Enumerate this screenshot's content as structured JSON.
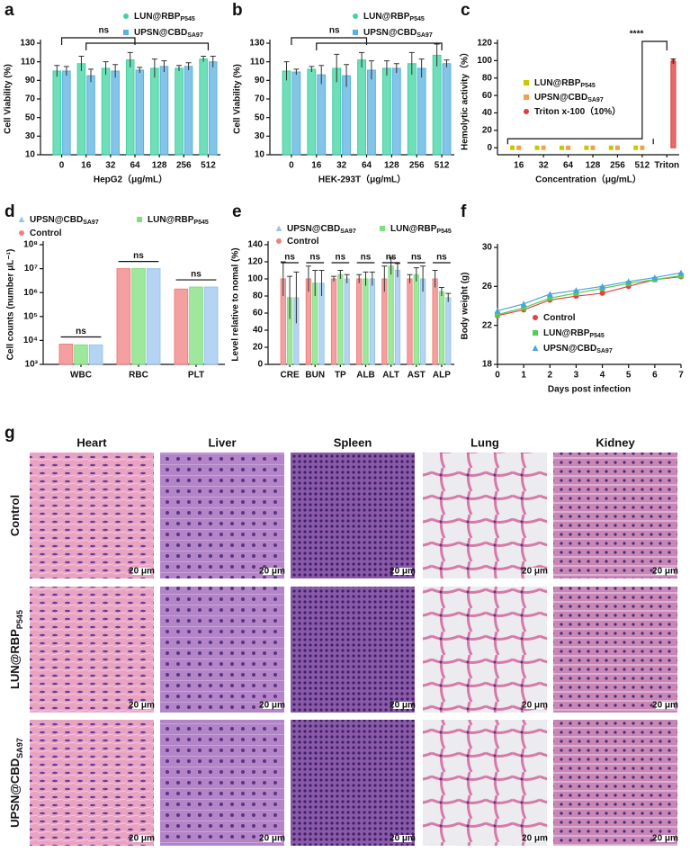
{
  "chart_data": [
    {
      "panel": "a",
      "type": "bar",
      "xlabel": "HepG2（μg/mL）",
      "ylabel": "Cell Viability (%)",
      "categories": [
        "0",
        "16",
        "32",
        "64",
        "128",
        "256",
        "512"
      ],
      "ylim": [
        10,
        130
      ],
      "yticks": [
        10,
        30,
        50,
        70,
        90,
        110,
        130
      ],
      "annotation": "ns",
      "series": [
        {
          "name": "LUN@RBP",
          "name_sub": "P545",
          "color": "#3fd3a1",
          "marker": "circle",
          "values": [
            100,
            108,
            103,
            112,
            103,
            103,
            113
          ],
          "errors": [
            6,
            8,
            7,
            8,
            10,
            3,
            3
          ]
        },
        {
          "name": "UPSN@CBD",
          "name_sub": "SA97",
          "color": "#5ab0e0",
          "marker": "square",
          "values": [
            100,
            95,
            100,
            101,
            105,
            105,
            110
          ],
          "errors": [
            5,
            7,
            7,
            3,
            6,
            4,
            6
          ]
        }
      ]
    },
    {
      "panel": "b",
      "type": "bar",
      "xlabel": "HEK-293T（μg/mL）",
      "ylabel": "Cell Viability (%)",
      "categories": [
        "0",
        "16",
        "32",
        "64",
        "128",
        "256",
        "512"
      ],
      "ylim": [
        10,
        130
      ],
      "yticks": [
        10,
        30,
        50,
        70,
        90,
        110,
        130
      ],
      "annotation": "ns",
      "series": [
        {
          "name": "LUN@RBP",
          "name_sub": "P545",
          "color": "#3fd3a1",
          "marker": "circle",
          "values": [
            100,
            102,
            103,
            112,
            103,
            108,
            117
          ],
          "errors": [
            10,
            3,
            15,
            8,
            8,
            12,
            12
          ]
        },
        {
          "name": "UPSN@CBD",
          "name_sub": "SA97",
          "color": "#5ab0e0",
          "marker": "square",
          "values": [
            99,
            96,
            95,
            101,
            103,
            103,
            108
          ],
          "errors": [
            3,
            10,
            12,
            10,
            5,
            10,
            4
          ]
        }
      ]
    },
    {
      "panel": "c",
      "type": "bar",
      "xlabel": "Concentration（μg/mL）",
      "ylabel": "Hemolytic activity（%）",
      "categories": [
        "16",
        "32",
        "64",
        "128",
        "256",
        "512",
        "Triton"
      ],
      "ylim": [
        -8,
        120
      ],
      "yticks": [
        0,
        20,
        40,
        60,
        80,
        100,
        120
      ],
      "annotation": "****",
      "markers": true,
      "series": [
        {
          "name": "LUN@RBP",
          "name_sub": "P545",
          "color": "#c9c800",
          "marker": "square",
          "values": [
            0,
            0,
            0,
            0,
            0,
            0,
            null
          ]
        },
        {
          "name": "UPSN@CBD",
          "name_sub": "SA97",
          "color": "#f0a050",
          "marker": "square",
          "values": [
            0,
            0,
            0,
            0,
            0,
            0,
            null
          ]
        },
        {
          "name": "Triton x-100（10%）",
          "color": "#e03a3a",
          "marker": "circle",
          "values": [
            null,
            null,
            null,
            null,
            null,
            null,
            99
          ],
          "errors": [
            null,
            null,
            null,
            null,
            null,
            null,
            3
          ]
        }
      ]
    },
    {
      "panel": "d",
      "type": "bar",
      "ylabel": "Cell counts (number μL⁻¹)",
      "log_y": true,
      "categories": [
        "WBC",
        "RBC",
        "PLT"
      ],
      "ylim": [
        1000,
        100000000
      ],
      "yticks": [
        {
          "value": 1000,
          "label": "10³"
        },
        {
          "value": 10000,
          "label": "10⁴"
        },
        {
          "value": 100000,
          "label": "10⁵"
        },
        {
          "value": 1000000,
          "label": "10⁶"
        },
        {
          "value": 10000000,
          "label": "10⁷"
        },
        {
          "value": 100000000,
          "label": "10⁸"
        }
      ],
      "annotations": [
        "ns",
        "ns",
        "ns"
      ],
      "series": [
        {
          "name": "Control",
          "color": "#f08080",
          "marker": "circle",
          "values": [
            7000,
            10000000,
            1400000
          ]
        },
        {
          "name": "LUN@RBP",
          "name_sub": "P545",
          "color": "#7ee07e",
          "marker": "square",
          "values": [
            6500,
            10000000,
            1700000
          ]
        },
        {
          "name": "UPSN@CBD",
          "name_sub": "SA97",
          "color": "#9cc4ee",
          "marker": "triangle",
          "values": [
            6500,
            10000000,
            1700000
          ]
        }
      ]
    },
    {
      "panel": "e",
      "type": "bar",
      "ylabel": "Level relative to nomal (%)",
      "categories": [
        "CRE",
        "BUN",
        "TP",
        "ALB",
        "ALT",
        "AST",
        "ALP"
      ],
      "ylim": [
        0,
        140
      ],
      "yticks": [
        0,
        20,
        40,
        60,
        80,
        100,
        120,
        140
      ],
      "annotations": [
        "ns",
        "ns",
        "ns",
        "ns",
        "ns",
        "ns",
        "ns"
      ],
      "series": [
        {
          "name": "Control",
          "color": "#f08080",
          "marker": "circle",
          "values": [
            100,
            100,
            100,
            100,
            100,
            100,
            100
          ],
          "errors": [
            20,
            15,
            3,
            5,
            15,
            5,
            10
          ]
        },
        {
          "name": "LUN@RBP",
          "name_sub": "P545",
          "color": "#7ee07e",
          "marker": "square",
          "values": [
            78,
            95,
            105,
            100,
            115,
            105,
            85
          ],
          "errors": [
            25,
            15,
            5,
            8,
            10,
            8,
            5
          ]
        },
        {
          "name": "UPSN@CBD",
          "name_sub": "SA97",
          "color": "#9cc4ee",
          "marker": "triangle",
          "values": [
            78,
            95,
            100,
            100,
            110,
            100,
            78
          ],
          "errors": [
            30,
            15,
            5,
            8,
            8,
            15,
            5
          ]
        }
      ]
    },
    {
      "panel": "f",
      "type": "line",
      "xlabel": "Days post infection",
      "ylabel": "Body weight (g)",
      "x": [
        0,
        1,
        2,
        3,
        4,
        5,
        6,
        7
      ],
      "xlim": [
        0,
        7
      ],
      "xticks": [
        0,
        1,
        2,
        3,
        4,
        5,
        6,
        7
      ],
      "ylim": [
        18,
        30
      ],
      "yticks": [
        18,
        22,
        26,
        30
      ],
      "series": [
        {
          "name": "Control",
          "color": "#e84040",
          "marker": "circle",
          "values": [
            23,
            23.6,
            24.6,
            25,
            25.3,
            26,
            26.7,
            27
          ]
        },
        {
          "name": "LUN@RBP",
          "name_sub": "P545",
          "color": "#50d050",
          "marker": "square",
          "values": [
            23.1,
            23.8,
            24.8,
            25.3,
            25.8,
            26.3,
            26.7,
            27.1
          ]
        },
        {
          "name": "UPSN@CBD",
          "name_sub": "SA97",
          "color": "#4aa3e0",
          "marker": "triangle",
          "values": [
            23.5,
            24.2,
            25.2,
            25.6,
            26,
            26.5,
            26.9,
            27.4
          ]
        }
      ]
    }
  ],
  "histology": {
    "panel": "g",
    "columns": [
      "Heart",
      "Liver",
      "Spleen",
      "Lung",
      "Kidney"
    ],
    "rows": [
      {
        "label": "Control"
      },
      {
        "label": "LUN@RBP",
        "sub": "P545"
      },
      {
        "label": "UPSN@CBD",
        "sub": "SA97"
      }
    ],
    "scale_bar": "20 μm"
  }
}
